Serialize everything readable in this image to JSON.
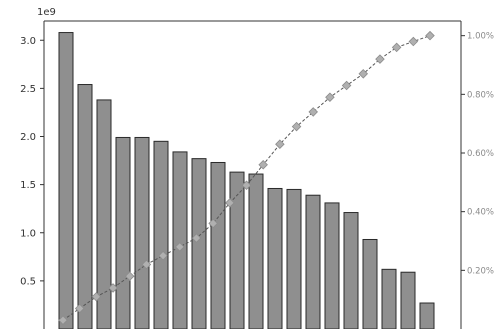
{
  "chart_data": {
    "type": "bar",
    "title": "",
    "xlabel": "",
    "ylabel": "",
    "offset_label": "1e9",
    "ylim": [
      0,
      3.2
    ],
    "y_ticks": [
      {
        "value": 0.5,
        "label": "0.5"
      },
      {
        "value": 1.0,
        "label": "1.0"
      },
      {
        "value": 1.5,
        "label": "1.5"
      },
      {
        "value": 2.0,
        "label": "2.0"
      },
      {
        "value": 2.5,
        "label": "2.5"
      },
      {
        "value": 3.0,
        "label": "3.0"
      }
    ],
    "y2lim": [
      0,
      1.05
    ],
    "y2_ticks": [
      {
        "value": 0.2,
        "label": "0.20%"
      },
      {
        "value": 0.4,
        "label": "0.40%"
      },
      {
        "value": 0.6,
        "label": "0.60%"
      },
      {
        "value": 0.8,
        "label": "0.80%"
      },
      {
        "value": 1.0,
        "label": "1.00%"
      }
    ],
    "series": [
      {
        "type": "bar",
        "color": "#8f8f8f",
        "values": [
          3.08,
          2.54,
          2.38,
          1.99,
          1.99,
          1.95,
          1.84,
          1.77,
          1.73,
          1.63,
          1.61,
          1.46,
          1.45,
          1.39,
          1.31,
          1.21,
          0.93,
          0.62,
          0.59,
          0.27
        ]
      },
      {
        "type": "line",
        "axis": "right",
        "color": "#b0b0b0",
        "marker": "diamond",
        "values": [
          0.03,
          0.07,
          0.11,
          0.14,
          0.18,
          0.22,
          0.25,
          0.28,
          0.31,
          0.36,
          0.43,
          0.49,
          0.56,
          0.63,
          0.69,
          0.74,
          0.79,
          0.83,
          0.87,
          0.92,
          0.96,
          0.98,
          1.0
        ]
      }
    ]
  }
}
